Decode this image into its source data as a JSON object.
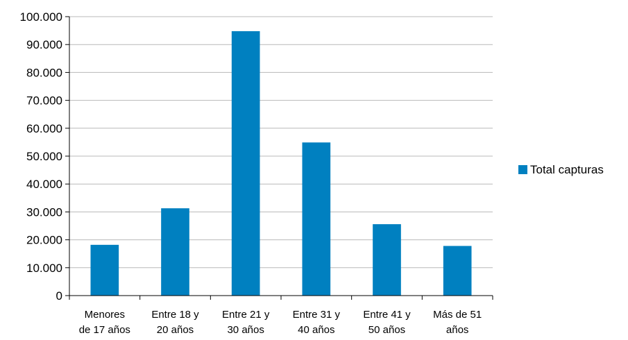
{
  "chart_data": {
    "type": "bar",
    "categories": [
      [
        "Menores",
        "de 17 años"
      ],
      [
        "Entre 18 y",
        "20 años"
      ],
      [
        "Entre 21 y",
        "30 años"
      ],
      [
        "Entre 31 y",
        "40 años"
      ],
      [
        "Entre 41 y",
        "50 años"
      ],
      [
        "Más de 51",
        "años"
      ]
    ],
    "series": [
      {
        "name": "Total capturas",
        "values": [
          18200,
          31300,
          94800,
          54900,
          25600,
          17800
        ],
        "color": "#0080c0"
      }
    ],
    "ylim": [
      0,
      100000
    ],
    "yticks": [
      0,
      10000,
      20000,
      30000,
      40000,
      50000,
      60000,
      70000,
      80000,
      90000,
      100000
    ],
    "ytick_labels": [
      "0",
      "10.000",
      "20.000",
      "30.000",
      "40.000",
      "50.000",
      "60.000",
      "70.000",
      "80.000",
      "90.000",
      "100.000"
    ],
    "grid": true,
    "legend_position": "right"
  }
}
